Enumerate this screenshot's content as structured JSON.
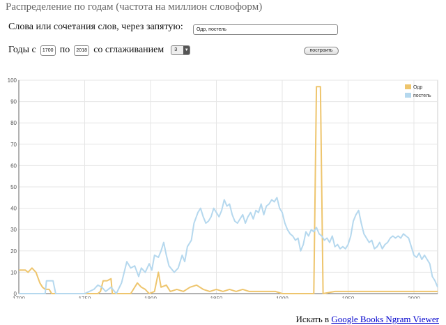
{
  "page": {
    "title": "Распределение по годам (частота на миллион словоформ)",
    "words_label": "Слова или сочетания слов, через запятую:",
    "words_value": "Одр, постель",
    "years_from_label": "Годы с",
    "year_from": "1700",
    "years_to_label": "по",
    "year_to": "2018",
    "smoothing_label": "со сглаживанием",
    "smoothing_value": "3",
    "build_button": "построить",
    "footer_prefix": "Искать в",
    "footer_link": "Google Books Ngram Viewer"
  },
  "chart_data": {
    "type": "line",
    "xlim": [
      1700,
      2018
    ],
    "ylim": [
      0,
      100
    ],
    "xticks": [
      1700,
      1750,
      1800,
      1850,
      1900,
      1950,
      2000
    ],
    "yticks": [
      0,
      10,
      20,
      30,
      40,
      50,
      60,
      70,
      80,
      90,
      100
    ],
    "grid": true,
    "legend_position": "top-right",
    "series": [
      {
        "name": "Одр",
        "color": "#eec56d",
        "points": [
          [
            1700,
            11
          ],
          [
            1705,
            11
          ],
          [
            1707,
            10
          ],
          [
            1710,
            12
          ],
          [
            1713,
            10
          ],
          [
            1716,
            5
          ],
          [
            1718,
            3
          ],
          [
            1720,
            2
          ],
          [
            1723,
            2
          ],
          [
            1725,
            0
          ],
          [
            1760,
            0
          ],
          [
            1762,
            1
          ],
          [
            1764,
            6
          ],
          [
            1767,
            6
          ],
          [
            1770,
            7
          ],
          [
            1771,
            0
          ],
          [
            1785,
            0
          ],
          [
            1790,
            5
          ],
          [
            1793,
            3
          ],
          [
            1796,
            2
          ],
          [
            1799,
            0
          ],
          [
            1803,
            1
          ],
          [
            1806,
            10
          ],
          [
            1808,
            3
          ],
          [
            1812,
            4
          ],
          [
            1815,
            1
          ],
          [
            1820,
            2
          ],
          [
            1825,
            1
          ],
          [
            1830,
            3
          ],
          [
            1835,
            4
          ],
          [
            1840,
            2
          ],
          [
            1845,
            1
          ],
          [
            1850,
            2
          ],
          [
            1855,
            1
          ],
          [
            1860,
            2
          ],
          [
            1865,
            1
          ],
          [
            1870,
            2
          ],
          [
            1875,
            1
          ],
          [
            1880,
            1
          ],
          [
            1885,
            1
          ],
          [
            1890,
            1
          ],
          [
            1895,
            1
          ],
          [
            1900,
            0
          ],
          [
            1920,
            0
          ],
          [
            1924,
            0
          ],
          [
            1926,
            97
          ],
          [
            1929,
            97
          ],
          [
            1931,
            0
          ],
          [
            1940,
            1
          ],
          [
            1960,
            1
          ],
          [
            2018,
            1
          ]
        ]
      },
      {
        "name": "постель",
        "color": "#b5d8ee",
        "points": [
          [
            1700,
            0
          ],
          [
            1720,
            0
          ],
          [
            1721,
            6
          ],
          [
            1726,
            6
          ],
          [
            1728,
            0
          ],
          [
            1750,
            0
          ],
          [
            1757,
            2
          ],
          [
            1760,
            4
          ],
          [
            1763,
            3
          ],
          [
            1766,
            1
          ],
          [
            1770,
            3
          ],
          [
            1774,
            0
          ],
          [
            1778,
            5
          ],
          [
            1782,
            15
          ],
          [
            1785,
            12
          ],
          [
            1788,
            13
          ],
          [
            1791,
            8
          ],
          [
            1793,
            12
          ],
          [
            1796,
            10
          ],
          [
            1799,
            14
          ],
          [
            1801,
            11
          ],
          [
            1803,
            18
          ],
          [
            1806,
            17
          ],
          [
            1808,
            20
          ],
          [
            1810,
            24
          ],
          [
            1812,
            18
          ],
          [
            1814,
            13
          ],
          [
            1818,
            10
          ],
          [
            1821,
            12
          ],
          [
            1824,
            18
          ],
          [
            1826,
            15
          ],
          [
            1828,
            22
          ],
          [
            1831,
            25
          ],
          [
            1833,
            33
          ],
          [
            1836,
            38
          ],
          [
            1838,
            40
          ],
          [
            1840,
            36
          ],
          [
            1842,
            33
          ],
          [
            1844,
            34
          ],
          [
            1846,
            36
          ],
          [
            1848,
            40
          ],
          [
            1850,
            38
          ],
          [
            1852,
            36
          ],
          [
            1854,
            39
          ],
          [
            1856,
            44
          ],
          [
            1858,
            41
          ],
          [
            1860,
            42
          ],
          [
            1862,
            37
          ],
          [
            1864,
            34
          ],
          [
            1866,
            33
          ],
          [
            1868,
            35
          ],
          [
            1870,
            37
          ],
          [
            1872,
            33
          ],
          [
            1874,
            36
          ],
          [
            1876,
            38
          ],
          [
            1878,
            35
          ],
          [
            1880,
            39
          ],
          [
            1882,
            38
          ],
          [
            1884,
            42
          ],
          [
            1886,
            37
          ],
          [
            1888,
            41
          ],
          [
            1890,
            42
          ],
          [
            1892,
            44
          ],
          [
            1894,
            43
          ],
          [
            1896,
            45
          ],
          [
            1898,
            40
          ],
          [
            1900,
            38
          ],
          [
            1902,
            33
          ],
          [
            1904,
            30
          ],
          [
            1906,
            28
          ],
          [
            1908,
            27
          ],
          [
            1910,
            25
          ],
          [
            1912,
            26
          ],
          [
            1914,
            20
          ],
          [
            1916,
            23
          ],
          [
            1918,
            29
          ],
          [
            1920,
            27
          ],
          [
            1922,
            30
          ],
          [
            1924,
            29
          ],
          [
            1926,
            31
          ],
          [
            1928,
            28
          ],
          [
            1930,
            27
          ],
          [
            1932,
            25
          ],
          [
            1934,
            26
          ],
          [
            1936,
            24
          ],
          [
            1938,
            27
          ],
          [
            1940,
            22
          ],
          [
            1942,
            23
          ],
          [
            1944,
            21
          ],
          [
            1946,
            22
          ],
          [
            1948,
            21
          ],
          [
            1950,
            23
          ],
          [
            1952,
            27
          ],
          [
            1954,
            34
          ],
          [
            1956,
            37
          ],
          [
            1958,
            39
          ],
          [
            1960,
            33
          ],
          [
            1962,
            28
          ],
          [
            1964,
            26
          ],
          [
            1966,
            24
          ],
          [
            1968,
            25
          ],
          [
            1970,
            21
          ],
          [
            1972,
            22
          ],
          [
            1974,
            24
          ],
          [
            1976,
            21
          ],
          [
            1978,
            23
          ],
          [
            1980,
            24
          ],
          [
            1982,
            26
          ],
          [
            1984,
            27
          ],
          [
            1986,
            26
          ],
          [
            1988,
            27
          ],
          [
            1990,
            26
          ],
          [
            1992,
            28
          ],
          [
            1994,
            27
          ],
          [
            1996,
            26
          ],
          [
            1998,
            22
          ],
          [
            2000,
            18
          ],
          [
            2002,
            17
          ],
          [
            2004,
            19
          ],
          [
            2006,
            16
          ],
          [
            2008,
            18
          ],
          [
            2010,
            16
          ],
          [
            2012,
            14
          ],
          [
            2014,
            8
          ],
          [
            2016,
            6
          ],
          [
            2018,
            3
          ]
        ]
      }
    ]
  }
}
